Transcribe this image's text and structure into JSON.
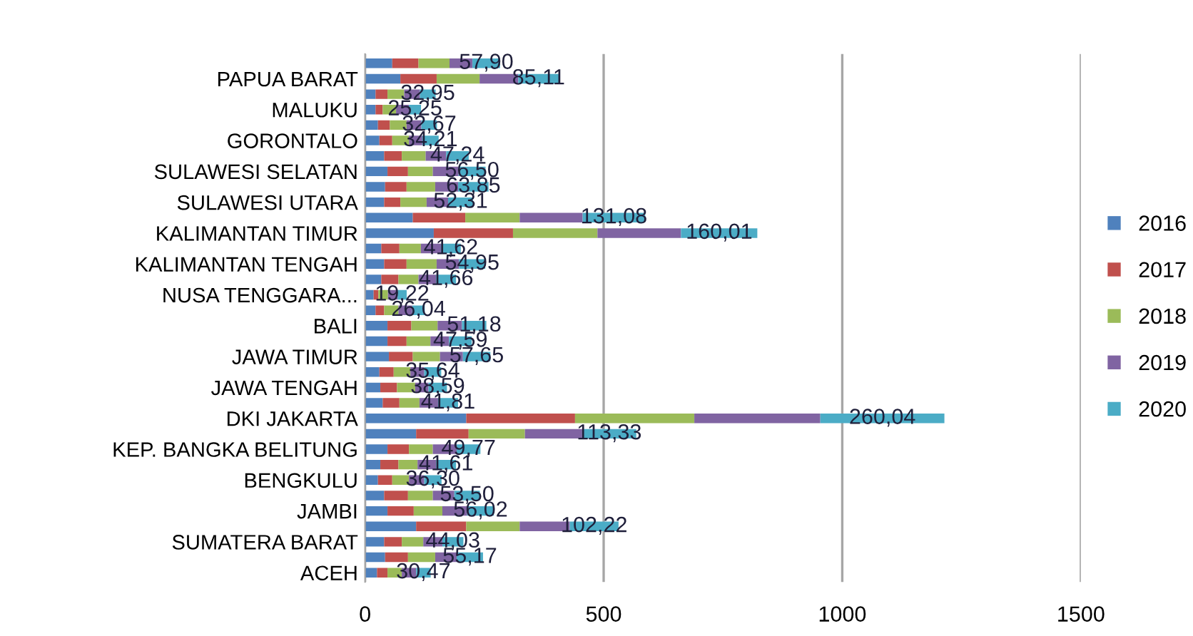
{
  "chart_data": {
    "type": "bar",
    "orientation": "horizontal",
    "stacked": true,
    "categories": [
      null,
      "PAPUA BARAT",
      null,
      "MALUKU",
      null,
      "GORONTALO",
      null,
      "SULAWESI SELATAN",
      null,
      "SULAWESI UTARA",
      null,
      "KALIMANTAN TIMUR",
      null,
      "KALIMANTAN TENGAH",
      null,
      "NUSA TENGGARA...",
      null,
      "BALI",
      null,
      "JAWA TIMUR",
      null,
      "JAWA TENGAH",
      null,
      "DKI JAKARTA",
      null,
      "KEP. BANGKA BELITUNG",
      null,
      "BENGKULU",
      null,
      "JAMBI",
      null,
      "SUMATERA BARAT",
      null,
      "ACEH"
    ],
    "series": [
      {
        "name": "2016",
        "color": "#4f81bd",
        "values": [
          57,
          74,
          22,
          22,
          27,
          30,
          40,
          47,
          42,
          40,
          100,
          144,
          34,
          40,
          34,
          18,
          22,
          47,
          47,
          50,
          30,
          32,
          37,
          212,
          107,
          47,
          32,
          27,
          40,
          47,
          107,
          40,
          42,
          25
        ]
      },
      {
        "name": "2017",
        "color": "#c0504d",
        "values": [
          55,
          76,
          25,
          15,
          25,
          27,
          37,
          43,
          45,
          34,
          110,
          166,
          38,
          47,
          36,
          10,
          18,
          50,
          40,
          50,
          30,
          35,
          35,
          228,
          110,
          45,
          38,
          30,
          50,
          55,
          105,
          37,
          48,
          22
        ]
      },
      {
        "name": "2018",
        "color": "#9bbb59",
        "values": [
          65,
          90,
          35,
          28,
          35,
          35,
          50,
          52,
          60,
          55,
          114,
          177,
          45,
          63,
          42,
          20,
          30,
          55,
          50,
          57,
          35,
          38,
          42,
          250,
          118,
          50,
          40,
          35,
          52,
          60,
          112,
          45,
          57,
          30
        ]
      },
      {
        "name": "2019",
        "color": "#8064a2",
        "values": [
          48,
          81,
          33,
          27,
          31,
          28,
          43,
          54,
          48,
          45,
          132,
          175,
          42,
          47,
          37,
          20,
          29,
          51,
          39,
          48,
          29,
          28,
          39,
          264,
          120,
          50,
          39,
          32,
          45,
          52,
          105,
          40,
          45,
          30
        ]
      },
      {
        "name": "2020",
        "color": "#4bacc6",
        "values": [
          57.9,
          85.11,
          32.95,
          25.25,
          32.67,
          34.21,
          47.24,
          56.5,
          63.85,
          52.31,
          131.08,
          160.01,
          41.62,
          54.95,
          41.66,
          19.22,
          26.04,
          51.18,
          47.59,
          57.65,
          35.64,
          38.59,
          41.81,
          260.04,
          113.33,
          49.77,
          41.61,
          36.3,
          53.5,
          56.02,
          102.22,
          44.03,
          55.17,
          30.47
        ],
        "value_labels": [
          "57,90",
          "85,11",
          "32,95",
          "25,25",
          "32,67",
          "34,21",
          "47,24",
          "56,50",
          "63,85",
          "52,31",
          "131,08",
          "160,01",
          "41,62",
          "54,95",
          "41,66",
          "19,22",
          "26,04",
          "51,18",
          "47,59",
          "57,65",
          "35,64",
          "38,59",
          "41,81",
          "260,04",
          "113,33",
          "49,77",
          "41,61",
          "36,30",
          "53,50",
          "56,02",
          "102,22",
          "44,03",
          "55,17",
          "30,47"
        ]
      }
    ],
    "xlim": [
      0,
      1500
    ],
    "xticks": [
      0,
      500,
      1000,
      1500
    ],
    "grid": "x",
    "legend": "right"
  }
}
